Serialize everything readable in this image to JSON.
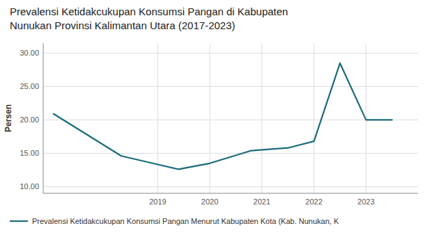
{
  "chart_data": {
    "type": "line",
    "title": "Prevalensi Ketidakcukupan Konsumsi Pangan di Kabupaten",
    "subtitle": "Nunukan Provinsi Kalimantan Utara (2017-2023)",
    "ylabel": "Persen",
    "x": [
      2017.0,
      2018.3,
      2018.9,
      2019.4,
      2020.0,
      2020.8,
      2021.5,
      2022.0,
      2022.5,
      2023.0,
      2023.5
    ],
    "series": [
      {
        "name": "Prevalensi Ketidakcukupan Konsumsi Pangan Menurut Kabupaten Kota (Kab. Nunukan, K",
        "color": "#1a6b7c",
        "values": [
          20.9,
          14.6,
          13.5,
          12.6,
          13.5,
          15.4,
          15.8,
          16.8,
          28.5,
          20.0,
          20.0
        ]
      }
    ],
    "xlim": [
      2016.8,
      2024.0
    ],
    "xticks": [
      2019,
      2020,
      2021,
      2022,
      2023
    ],
    "ylim": [
      9.0,
      31.5
    ],
    "yticks": [
      {
        "value": 10.0,
        "label": "10.00"
      },
      {
        "value": 15.0,
        "label": "15.00"
      },
      {
        "value": 20.0,
        "label": "20.00"
      },
      {
        "value": 25.0,
        "label": "25.00"
      },
      {
        "value": 30.0,
        "label": "30.00"
      }
    ],
    "grid": true,
    "legend": "bottom"
  }
}
